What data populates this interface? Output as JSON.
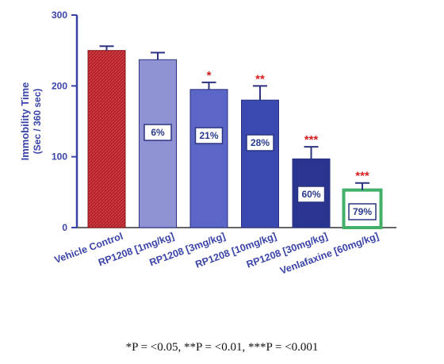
{
  "chart_data": {
    "type": "bar",
    "ylabel_line1": "Immobility Time",
    "ylabel_line2": "(Sec / 360 sec)",
    "ylim": [
      0,
      300
    ],
    "yticks": [
      0,
      100,
      200,
      300
    ],
    "categories": [
      "Vehicle Control",
      "RP1208 [1mg/kg]",
      "RP1208 [3mg/kg]",
      "RP1208 [10mg/kg]",
      "RP1208 [30mg/kg]",
      "Venlafaxine [60mg/kg]"
    ],
    "values": [
      250,
      237,
      195,
      180,
      97,
      53
    ],
    "errors": [
      6,
      10,
      10,
      20,
      17,
      10
    ],
    "significance": [
      "",
      "",
      "*",
      "**",
      "***",
      "***"
    ],
    "percent_labels": [
      "",
      "6%",
      "21%",
      "28%",
      "60%",
      "79%"
    ],
    "colors": {
      "vehicle": "#b3202a",
      "bars": [
        "#b3202a",
        "#8f93d3",
        "#5b66c6",
        "#3a49b0",
        "#2a3590",
        "#43b06a"
      ],
      "axis": "#3a44a8",
      "significance": "#d62020"
    }
  },
  "footnote": "*P = <0.05, **P = <0.01, ***P = <0.001"
}
